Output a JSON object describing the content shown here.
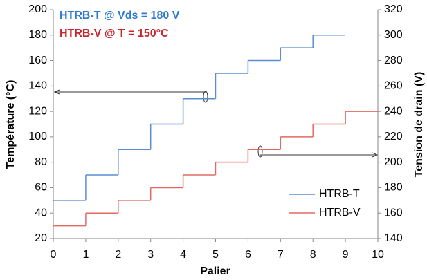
{
  "chart_data": {
    "type": "step",
    "annotations": [
      "HTRB-T @ Vds = 180 V",
      "HTRB-V @ T = 150°C"
    ],
    "xlabel": "Palier",
    "ylabel": "Température (°C)",
    "y2label": "Tension de drain (V)",
    "xlim": [
      0,
      10
    ],
    "xticks": [
      0,
      1,
      2,
      3,
      4,
      5,
      6,
      7,
      8,
      9,
      10
    ],
    "ylim": [
      20,
      200
    ],
    "yticks": [
      20,
      40,
      60,
      80,
      100,
      120,
      140,
      160,
      180,
      200
    ],
    "y2lim": [
      140,
      320
    ],
    "y2ticks": [
      140,
      160,
      180,
      200,
      220,
      240,
      260,
      280,
      300,
      320
    ],
    "legend": "lower right",
    "series": [
      {
        "name": "HTRB-T",
        "color": "#5a8ed0",
        "bins": [
          0,
          1,
          2,
          3,
          4,
          5,
          6,
          7,
          8,
          9
        ],
        "values": [
          50,
          70,
          90,
          110,
          130,
          150,
          160,
          170,
          180
        ]
      },
      {
        "name": "HTRB-V",
        "color": "#e06a62",
        "axis": "y2",
        "bins": [
          0,
          1,
          2,
          3,
          4,
          5,
          6,
          7,
          8,
          9,
          10
        ],
        "values": [
          150,
          160,
          170,
          180,
          190,
          200,
          210,
          220,
          230,
          240
        ]
      }
    ]
  }
}
